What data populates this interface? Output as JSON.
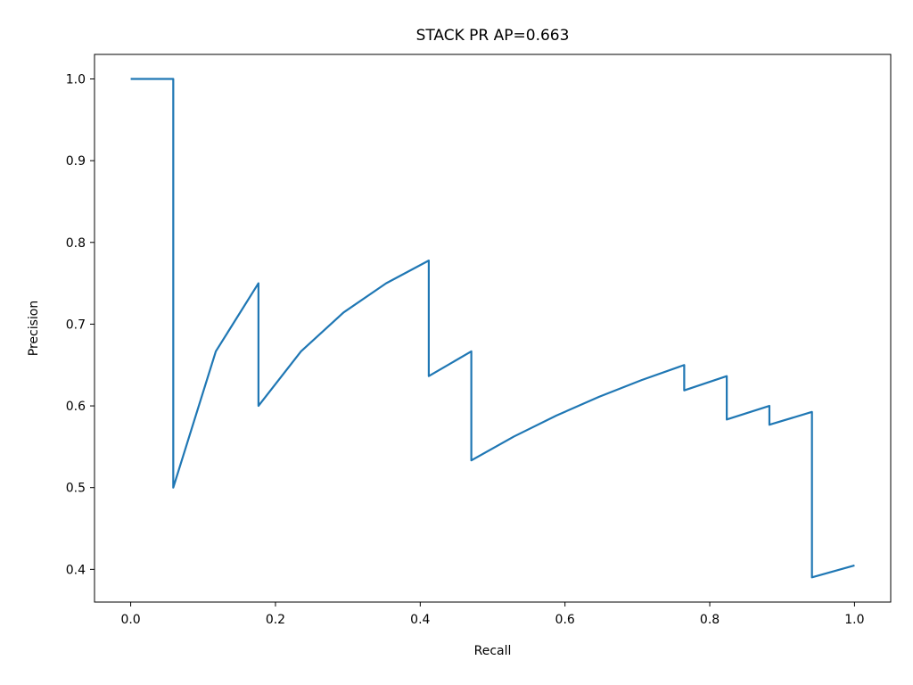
{
  "chart_data": {
    "type": "line",
    "title": "STACK PR AP=0.663",
    "xlabel": "Recall",
    "ylabel": "Precision",
    "xlim": [
      -0.05,
      1.05
    ],
    "ylim": [
      0.36,
      1.03
    ],
    "xticks": [
      0.0,
      0.2,
      0.4,
      0.6,
      0.8,
      1.0
    ],
    "xtick_labels": [
      "0.0",
      "0.2",
      "0.4",
      "0.6",
      "0.8",
      "1.0"
    ],
    "yticks": [
      0.4,
      0.5,
      0.6,
      0.7,
      0.8,
      0.9,
      1.0
    ],
    "ytick_labels": [
      "0.4",
      "0.5",
      "0.6",
      "0.7",
      "0.8",
      "0.9",
      "1.0"
    ],
    "grid": false,
    "legend": "none",
    "line_color": "#1f77b4",
    "series": [
      {
        "x": [
          0.0,
          0.0588,
          0.0588,
          0.1176,
          0.1765,
          0.1765,
          0.2353,
          0.2941,
          0.3529,
          0.4118,
          0.4118,
          0.4706,
          0.4706,
          0.5294,
          0.5882,
          0.6471,
          0.7059,
          0.7647,
          0.7647,
          0.8235,
          0.8235,
          0.8824,
          0.8824,
          0.9412,
          0.9412,
          1.0
        ],
        "y": [
          1.0,
          1.0,
          0.5,
          0.6667,
          0.75,
          0.6,
          0.6667,
          0.7143,
          0.75,
          0.7778,
          0.6364,
          0.6667,
          0.5333,
          0.5625,
          0.5882,
          0.6111,
          0.6316,
          0.65,
          0.619,
          0.6364,
          0.5833,
          0.6,
          0.5769,
          0.5926,
          0.3902,
          0.4048
        ]
      }
    ]
  }
}
